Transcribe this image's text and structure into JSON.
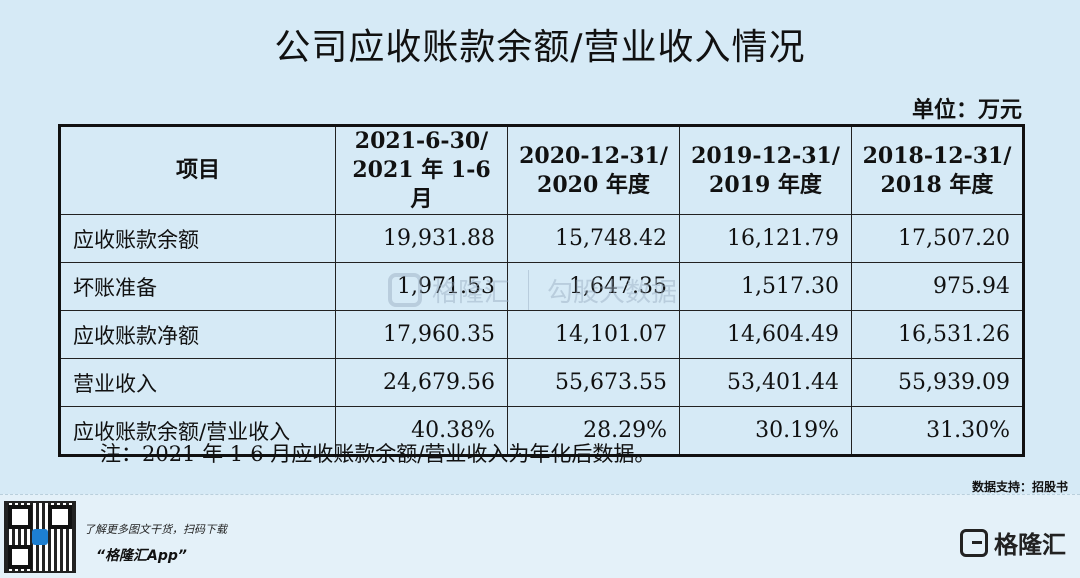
{
  "title": "公司应收账款余额/营业收入情况",
  "unit": "单位：万元",
  "table": {
    "headers": [
      {
        "line1": "项目",
        "line2": ""
      },
      {
        "line1": "2021-6-30/",
        "line2": "2021 年 1-6 月"
      },
      {
        "line1": "2020-12-31/",
        "line2": "2020 年度"
      },
      {
        "line1": "2019-12-31/",
        "line2": "2019 年度"
      },
      {
        "line1": "2018-12-31/",
        "line2": "2018 年度"
      }
    ],
    "rows": [
      {
        "label": "应收账款余额",
        "values": [
          "19,931.88",
          "15,748.42",
          "16,121.79",
          "17,507.20"
        ]
      },
      {
        "label": "坏账准备",
        "values": [
          "1,971.53",
          "1,647.35",
          "1,517.30",
          "975.94"
        ]
      },
      {
        "label": "应收账款净额",
        "values": [
          "17,960.35",
          "14,101.07",
          "14,604.49",
          "16,531.26"
        ]
      },
      {
        "label": "营业收入",
        "values": [
          "24,679.56",
          "55,673.55",
          "53,401.44",
          "55,939.09"
        ]
      },
      {
        "label": "应收账款余额/营业收入",
        "values": [
          "40.38%",
          "28.29%",
          "30.19%",
          "31.30%"
        ]
      }
    ]
  },
  "note": "注：2021 年 1-6 月应收账款余额/营业收入为年化后数据。",
  "source": "数据支持：招股书",
  "footer": {
    "promo_line": "了解更多图文干货，扫码下载",
    "app_name": "“格隆汇App”",
    "brand": "格隆汇"
  },
  "watermark": {
    "left": "格隆汇",
    "right": "勾股大数据"
  }
}
